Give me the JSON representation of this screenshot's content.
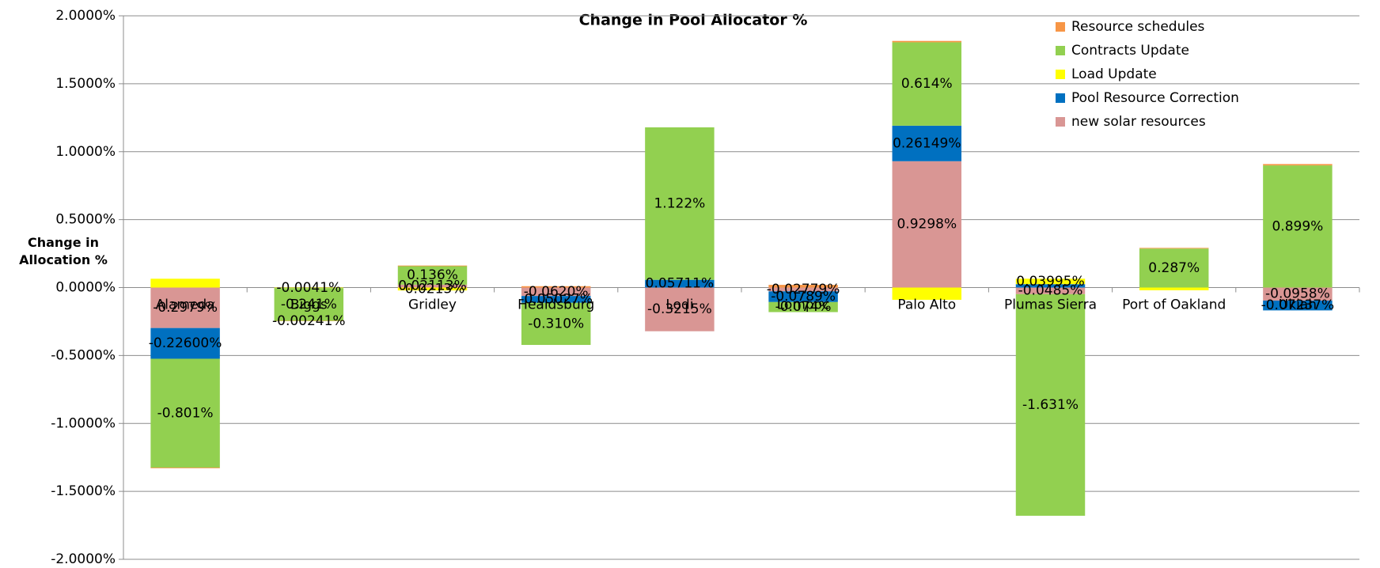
{
  "chart_data": {
    "type": "stacked_bar",
    "title": "Change in Pool Allocator %",
    "y_label": "Change in Allocation %",
    "categories": [
      "Alameda",
      "Biggs",
      "Gridley",
      "Healdsburg",
      "Lodi",
      "Lompoc",
      "Palo Alto",
      "Plumas Sierra",
      "Port of Oakland",
      "Ukiah"
    ],
    "series": [
      {
        "name": "Resource schedules",
        "color": "#f79646",
        "values": [
          -0.005,
          -0.00241,
          0.005,
          0.01,
          0,
          0.02,
          0.01,
          0,
          0.005,
          0.01
        ],
        "value_labels": [
          null,
          "-0.00241%",
          null,
          null,
          null,
          null,
          null,
          null,
          null,
          null
        ]
      },
      {
        "name": "Contracts Update",
        "color": "#92d050",
        "values": [
          -0.801,
          -0.241,
          0.136,
          -0.31,
          1.122,
          -0.074,
          0.614,
          -1.631,
          0.287,
          0.899
        ],
        "value_labels": [
          "-0.801%",
          "-0.241%",
          "0.136%",
          "-0.310%",
          "1.122%",
          "-0.074%",
          "0.614%",
          "-1.631%",
          "0.287%",
          "0.899%"
        ]
      },
      {
        "name": "Load Update",
        "color": "#ffff00",
        "values": [
          0.065,
          -0.0041,
          -0.0213,
          0,
          0,
          0,
          -0.09,
          0.03995,
          -0.02,
          0
        ],
        "value_labels": [
          null,
          "-0.0041%",
          "-0.0213%",
          null,
          null,
          null,
          null,
          "0.03995%",
          null,
          null
        ]
      },
      {
        "name": "Pool Resource Correction",
        "color": "#0070c0",
        "values": [
          -0.226,
          0,
          0,
          -0.05027,
          0.05711,
          -0.0789,
          0.26149,
          0.025,
          0,
          -0.07237
        ],
        "value_labels": [
          "-0.22600%",
          null,
          null,
          "-0.05027%",
          "0.05711%",
          "-0.0789%",
          "0.26149%",
          null,
          null,
          "-0.07237%"
        ]
      },
      {
        "name": "new solar resources",
        "color": "#d99694",
        "values": [
          -0.2979,
          0,
          0.02113,
          -0.062,
          -0.3215,
          -0.02779,
          0.9298,
          -0.0485,
          0,
          -0.0958
        ],
        "value_labels": [
          "-0.2979%",
          null,
          "0.02113%",
          "-0.0620%",
          "-0.3215%",
          "-0.02779%",
          "0.9298%",
          "-0.0485%",
          null,
          "-0.0958%"
        ]
      }
    ],
    "ylim": [
      -2,
      2
    ],
    "yticks": [
      {
        "value": -2,
        "label": "-2.0000%"
      },
      {
        "value": -1.5,
        "label": "-1.5000%"
      },
      {
        "value": -1,
        "label": "-1.0000%"
      },
      {
        "value": -0.5,
        "label": "-0.5000%"
      },
      {
        "value": 0,
        "label": "0.0000%"
      },
      {
        "value": 0.5,
        "label": "0.5000%"
      },
      {
        "value": 1,
        "label": "1.0000%"
      },
      {
        "value": 1.5,
        "label": "1.5000%"
      },
      {
        "value": 2,
        "label": "2.0000%"
      }
    ],
    "grid": true,
    "legend": "upper right"
  }
}
